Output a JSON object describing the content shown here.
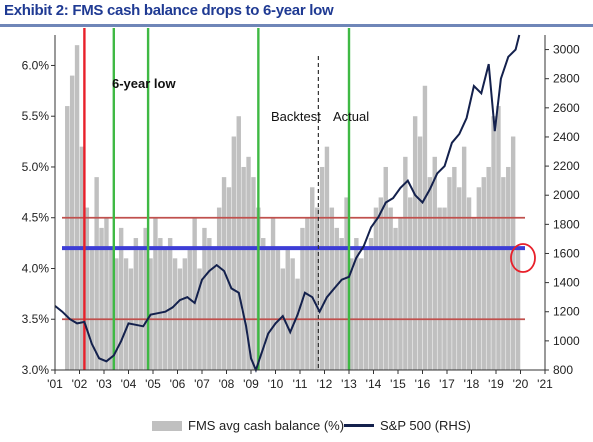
{
  "title": "Exhibit 2: FMS cash balance drops to 6-year low",
  "chart_data": {
    "type": "bar",
    "x_ticks": [
      "'01",
      "'02",
      "'03",
      "'04",
      "'05",
      "'06",
      "'07",
      "'08",
      "'09",
      "'10",
      "'11",
      "'12",
      "'13",
      "'14",
      "'15",
      "'16",
      "'17",
      "'18",
      "'19",
      "'20",
      "'21"
    ],
    "y_left": {
      "ticks": [
        "3.0%",
        "3.5%",
        "4.0%",
        "4.5%",
        "5.0%",
        "5.5%",
        "6.0%"
      ],
      "ylim": [
        3.0,
        6.3
      ]
    },
    "y_right": {
      "ticks": [
        "800",
        "1000",
        "1200",
        "1400",
        "1600",
        "1800",
        "2000",
        "2200",
        "2400",
        "2600",
        "2800",
        "3000"
      ],
      "ylim": [
        800,
        3100
      ]
    },
    "series": [
      {
        "name": "FMS avg cash balance (%)",
        "axis": "left",
        "type": "bar",
        "x": [
          2001.5,
          2001.7,
          2001.9,
          2002.1,
          2002.3,
          2002.5,
          2002.7,
          2002.9,
          2003.1,
          2003.3,
          2003.5,
          2003.7,
          2003.9,
          2004.1,
          2004.3,
          2004.5,
          2004.7,
          2004.9,
          2005.1,
          2005.3,
          2005.5,
          2005.7,
          2005.9,
          2006.1,
          2006.3,
          2006.5,
          2006.7,
          2006.9,
          2007.1,
          2007.3,
          2007.5,
          2007.7,
          2007.9,
          2008.1,
          2008.3,
          2008.5,
          2008.7,
          2008.9,
          2009.1,
          2009.3,
          2009.5,
          2009.7,
          2009.9,
          2010.1,
          2010.3,
          2010.5,
          2010.7,
          2010.9,
          2011.1,
          2011.3,
          2011.5,
          2011.7,
          2011.9,
          2012.1,
          2012.3,
          2012.5,
          2012.7,
          2012.9,
          2013.1,
          2013.3,
          2013.5,
          2013.7,
          2013.9,
          2014.1,
          2014.3,
          2014.5,
          2014.7,
          2014.9,
          2015.1,
          2015.3,
          2015.5,
          2015.7,
          2015.9,
          2016.1,
          2016.3,
          2016.5,
          2016.7,
          2016.9,
          2017.1,
          2017.3,
          2017.5,
          2017.7,
          2017.9,
          2018.1,
          2018.3,
          2018.5,
          2018.7,
          2018.9,
          2019.1,
          2019.3,
          2019.5,
          2019.7,
          2019.9
        ],
        "values": [
          5.6,
          5.9,
          6.2,
          5.2,
          4.6,
          4.2,
          4.9,
          4.4,
          4.5,
          4.2,
          4.1,
          4.4,
          4.1,
          4.0,
          4.3,
          4.2,
          4.4,
          4.1,
          4.5,
          4.3,
          4.2,
          4.3,
          4.1,
          4.0,
          4.1,
          4.2,
          4.5,
          4.0,
          4.4,
          4.3,
          4.2,
          4.6,
          4.9,
          4.8,
          5.3,
          5.5,
          5.0,
          5.1,
          4.9,
          4.6,
          4.3,
          4.2,
          4.5,
          4.2,
          4.0,
          4.2,
          4.1,
          3.9,
          4.4,
          4.5,
          4.8,
          4.6,
          5.0,
          5.2,
          4.6,
          4.4,
          4.3,
          4.7,
          4.1,
          4.3,
          4.1,
          4.2,
          4.3,
          4.6,
          4.7,
          5.0,
          4.6,
          4.4,
          4.5,
          5.1,
          4.7,
          5.5,
          5.3,
          5.8,
          4.9,
          5.1,
          4.6,
          4.6,
          4.9,
          5.0,
          4.8,
          5.2,
          4.7,
          4.5,
          4.8,
          4.9,
          5.0,
          5.5,
          5.6,
          4.9,
          5.0,
          5.3,
          4.2
        ]
      },
      {
        "name": "S&P 500 (RHS)",
        "axis": "right",
        "type": "line",
        "x": [
          2001.0,
          2001.3,
          2001.6,
          2001.9,
          2002.2,
          2002.5,
          2002.8,
          2003.1,
          2003.4,
          2003.7,
          2004.0,
          2004.3,
          2004.6,
          2004.9,
          2005.2,
          2005.5,
          2005.8,
          2006.1,
          2006.4,
          2006.7,
          2007.0,
          2007.3,
          2007.6,
          2007.9,
          2008.2,
          2008.5,
          2008.8,
          2009.0,
          2009.2,
          2009.4,
          2009.7,
          2010.0,
          2010.3,
          2010.6,
          2010.9,
          2011.2,
          2011.5,
          2011.8,
          2012.1,
          2012.4,
          2012.7,
          2013.0,
          2013.3,
          2013.6,
          2013.9,
          2014.2,
          2014.5,
          2014.8,
          2015.1,
          2015.4,
          2015.7,
          2016.0,
          2016.3,
          2016.6,
          2016.9,
          2017.2,
          2017.5,
          2017.8,
          2018.1,
          2018.4,
          2018.7,
          2018.95,
          2019.2,
          2019.5,
          2019.8,
          2019.95
        ],
        "values": [
          1240,
          1200,
          1150,
          1120,
          1130,
          980,
          880,
          860,
          900,
          1000,
          1120,
          1110,
          1100,
          1180,
          1190,
          1200,
          1230,
          1280,
          1300,
          1260,
          1420,
          1480,
          1520,
          1480,
          1360,
          1330,
          1100,
          880,
          800,
          900,
          1050,
          1120,
          1170,
          1060,
          1180,
          1330,
          1300,
          1200,
          1300,
          1360,
          1420,
          1440,
          1570,
          1650,
          1780,
          1850,
          1950,
          1980,
          2050,
          2100,
          2000,
          1950,
          2040,
          2150,
          2200,
          2360,
          2420,
          2530,
          2750,
          2700,
          2900,
          2440,
          2800,
          2950,
          3000,
          3100
        ]
      }
    ],
    "horizontal_lines": [
      {
        "axis": "left",
        "value": 4.5,
        "color": "#c0504d"
      },
      {
        "axis": "left",
        "value": 3.5,
        "color": "#c0504d"
      },
      {
        "axis": "left",
        "value": 4.2,
        "color": "#3d3dd6"
      }
    ],
    "vertical_lines": [
      {
        "x": 2002.2,
        "color": "#e8202a"
      },
      {
        "x": 2003.4,
        "color": "#3fb944"
      },
      {
        "x": 2004.8,
        "color": "#3fb944"
      },
      {
        "x": 2009.3,
        "color": "#3fb944"
      },
      {
        "x": 2013.0,
        "color": "#3fb944"
      }
    ],
    "divider_x": 2011.75,
    "annotations": [
      {
        "text": "6-year low",
        "color": "#e8202a"
      },
      {
        "text": "Backtest",
        "color": "#111111"
      },
      {
        "text": "Actual",
        "color": "#111111"
      }
    ],
    "legend_position": "bottom",
    "grid": false
  },
  "legend": {
    "bar_label": "FMS avg cash balance (%)",
    "line_label": "S&P 500 (RHS)"
  }
}
